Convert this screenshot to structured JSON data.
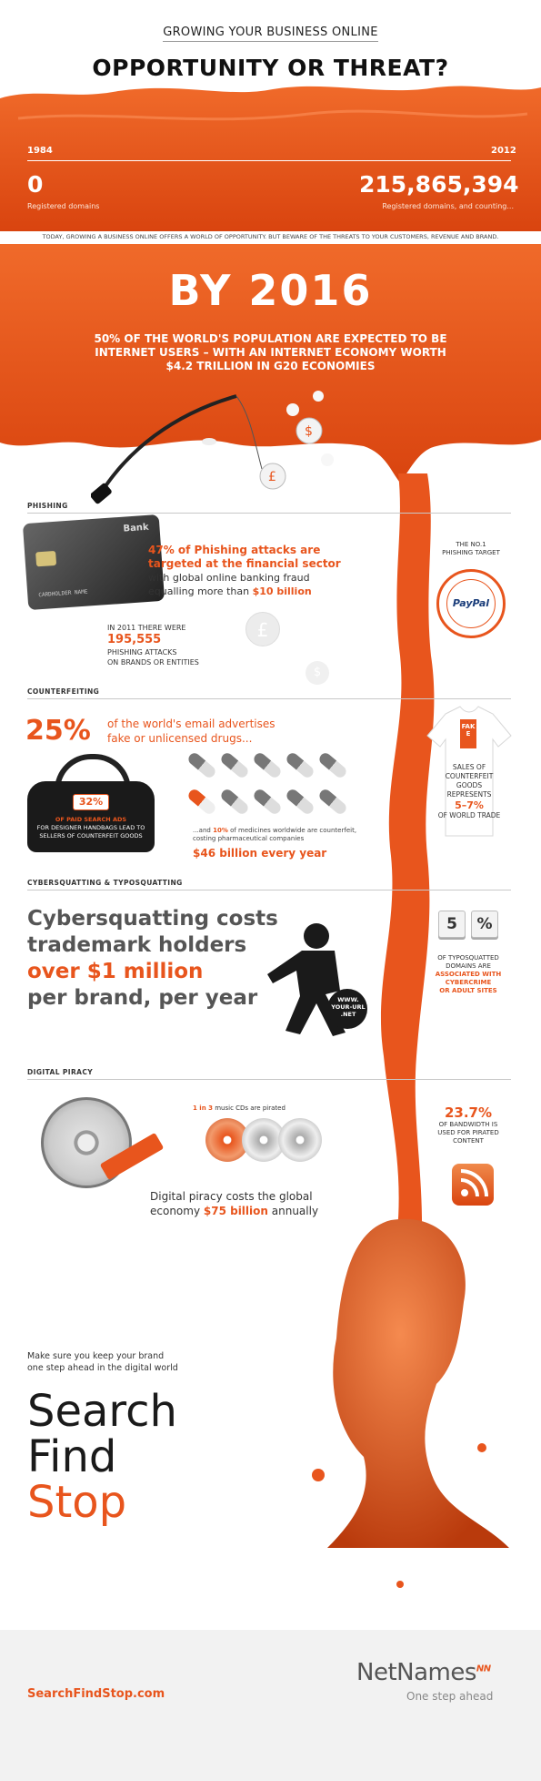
{
  "header": {
    "subtitle": "GROWING YOUR BUSINESS ONLINE",
    "title": "OPPORTUNITY OR THREAT?"
  },
  "timeline": {
    "start_year": "1984",
    "end_year": "2012",
    "start_value": "0",
    "start_caption": "Registered domains",
    "end_value": "215,865,394",
    "end_caption": "Registered domains, and counting..."
  },
  "intro_text": "TODAY, GROWING A BUSINESS ONLINE OFFERS A WORLD OF OPPORTUNITY.  BUT BEWARE OF THE THREATS TO YOUR CUSTOMERS, REVENUE AND BRAND.",
  "by2016": {
    "title": "BY 2016",
    "line1": "50% OF THE WORLD'S POPULATION ARE EXPECTED TO BE",
    "line2": "INTERNET USERS – WITH AN INTERNET ECONOMY WORTH",
    "line3": "$4.2 TRILLION IN G20 ECONOMIES"
  },
  "phishing": {
    "label": "PHISHING",
    "stat_l1": "47% of Phishing attacks are",
    "stat_l2": "targeted at the financial sector",
    "stat_l3": "with global online banking fraud",
    "stat_l4a": "equalling more than ",
    "stat_l4b": "$10 billion",
    "count_l1": "IN 2011 THERE WERE",
    "count_value": "195,555",
    "count_l2": "PHISHING ATTACKS",
    "count_l3": "ON BRANDS OR ENTITIES",
    "target_l1": "THE NO.1",
    "target_l2": "PHISHING TARGET",
    "brand": "PayPal",
    "card_bank": "Bank",
    "card_holder": "CARDHOLDER NAME"
  },
  "counterfeiting": {
    "label": "COUNTERFEITING",
    "pct": "25%",
    "email_l1": "of the world's email advertises",
    "email_l2": "fake or unlicensed drugs...",
    "bag_pct": "32%",
    "bag_l1": "OF PAID SEARCH ADS",
    "bag_l2": "FOR DESIGNER HANDBAGS LEAD TO",
    "bag_l3": "SELLERS OF COUNTERFEIT GOODS",
    "med_l1a": "...and ",
    "med_l1b": "10%",
    "med_l1c": " of medicines worldwide are counterfeit,",
    "med_l2": "costing pharmaceutical companies",
    "med_value": "$46 billion every year",
    "tag": "FAKE",
    "trade_l1": "SALES OF",
    "trade_l2": "COUNTERFEIT",
    "trade_l3": "GOODS",
    "trade_l4": "REPRESENTS",
    "trade_value": "5–7%",
    "trade_l5": "OF WORLD TRADE"
  },
  "cybersquatting": {
    "label": "CYBERSQUATTING & TYPOSQUATTING",
    "l1": "Cybersquatting costs",
    "l2": "trademark holders",
    "l3": "over $1 million",
    "l4": "per brand, per year",
    "bag_text": "WWW. YOUR-URL .NET",
    "key1": "5",
    "key2": "%",
    "typo_l1": "OF TYPOSQUATTED",
    "typo_l2": "DOMAINS ARE",
    "typo_l3": "ASSOCIATED WITH",
    "typo_l4": "CYBERCRIME",
    "typo_l5": "OR ADULT SITES"
  },
  "piracy": {
    "label": "DIGITAL PIRACY",
    "cd_a": "1 in 3",
    "cd_b": " music CDs are pirated",
    "bw_value": "23.7%",
    "bw_l1": "OF BANDWIDTH IS",
    "bw_l2": "USED FOR PIRATED",
    "bw_l3": "CONTENT",
    "cost_l1": "Digital piracy costs the global",
    "cost_l2a": "economy ",
    "cost_l2b": "$75 billion",
    "cost_l2c": " annually"
  },
  "closing": {
    "l1": "Make sure you keep your brand",
    "l2": "one step ahead in the digital world",
    "w1": "Search",
    "w2": "Find",
    "w3": "Stop"
  },
  "footer": {
    "url": "SearchFindStop.com",
    "logo": "NetNames",
    "logo_sup": "NN",
    "tagline": "One step ahead"
  },
  "colors": {
    "accent": "#e8551d",
    "dark": "#222222",
    "grey": "#f2f2f2"
  }
}
